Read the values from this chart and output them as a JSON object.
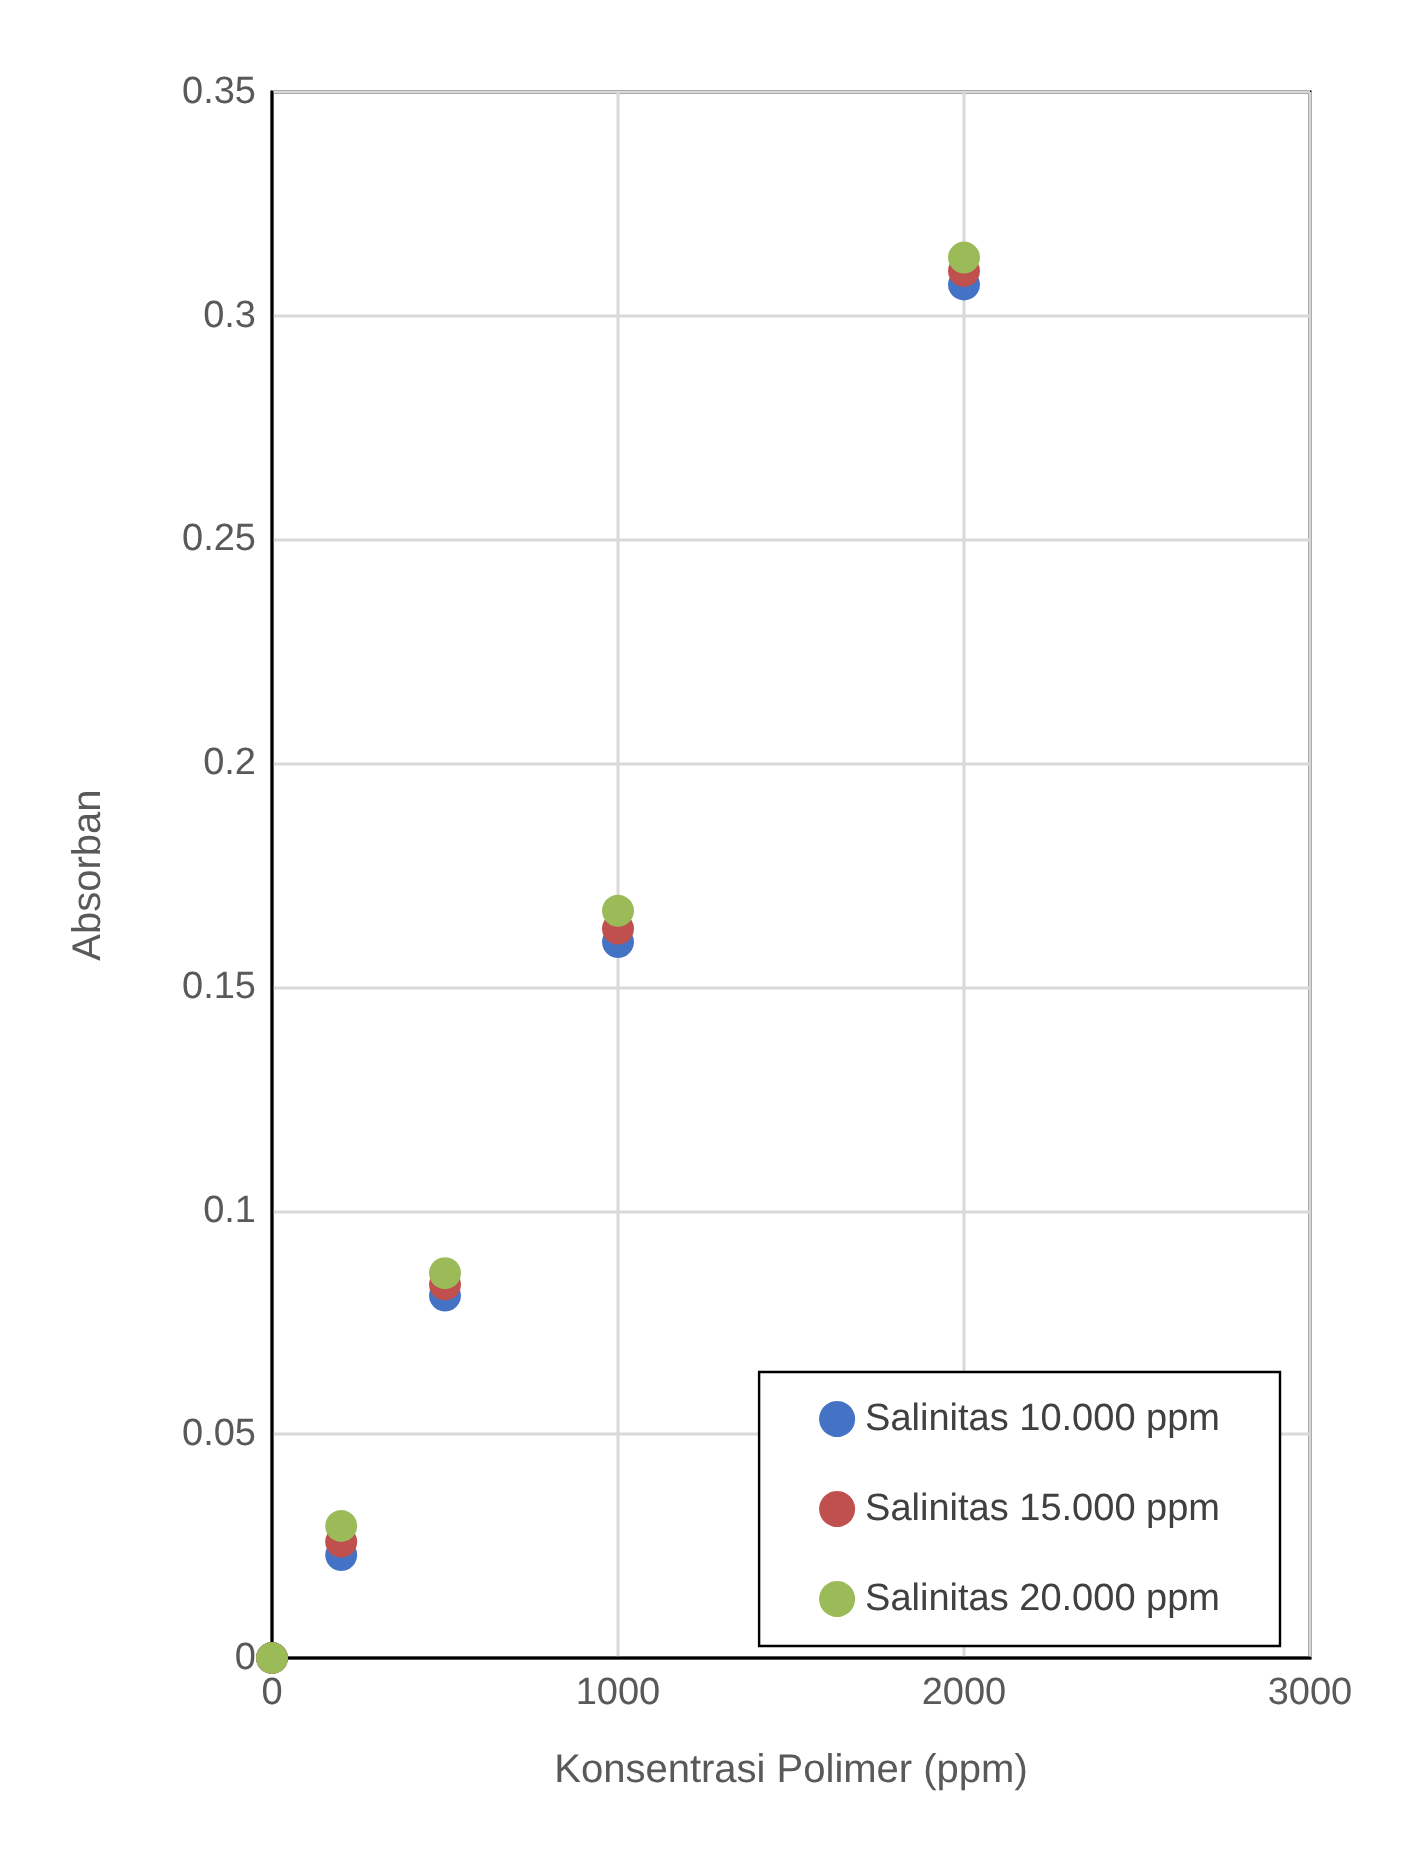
{
  "chart_data": {
    "type": "scatter",
    "xlabel": "Konsentrasi Polimer (ppm)",
    "ylabel": "Absorban",
    "x": [
      0,
      200,
      500,
      1000,
      2000
    ],
    "series": [
      {
        "name": "Salinitas 10.000 ppm",
        "color": "#4472c4",
        "values": [
          0,
          0.023,
          0.081,
          0.16,
          0.307
        ]
      },
      {
        "name": "Salinitas 15.000 ppm",
        "color": "#c0504d",
        "values": [
          0,
          0.026,
          0.0835,
          0.163,
          0.31
        ]
      },
      {
        "name": "Salinitas 20.000 ppm",
        "color": "#9bbb59",
        "values": [
          0,
          0.0295,
          0.086,
          0.167,
          0.313
        ]
      }
    ],
    "xlim": [
      0,
      3000
    ],
    "xticks": [
      0,
      1000,
      2000,
      3000
    ],
    "ylim": [
      0,
      0.35
    ],
    "yticks": [
      0,
      0.05,
      0.1,
      0.15,
      0.2,
      0.25,
      0.3,
      0.35
    ],
    "grid": true,
    "legend": "bottom right",
    "marker": "circle"
  }
}
